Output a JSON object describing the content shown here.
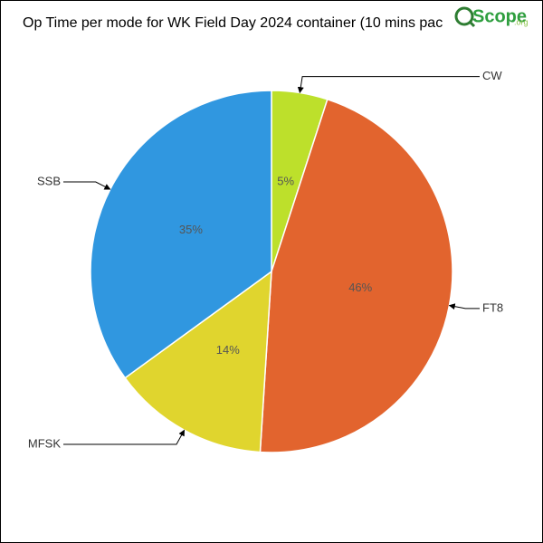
{
  "chart_data": {
    "type": "pie",
    "title": "Op Time per mode for WK Field Day 2024 container (10 mins pac",
    "categories": [
      "CW",
      "FT8",
      "MFSK",
      "SSB"
    ],
    "values": [
      5,
      46,
      14,
      35
    ],
    "value_labels": [
      "5%",
      "46%",
      "14%",
      "35%"
    ],
    "colors": [
      "#bde02b",
      "#e2642e",
      "#e0d52e",
      "#3097e0"
    ]
  },
  "logo": {
    "name": "Scope",
    "suffix": ".org"
  }
}
